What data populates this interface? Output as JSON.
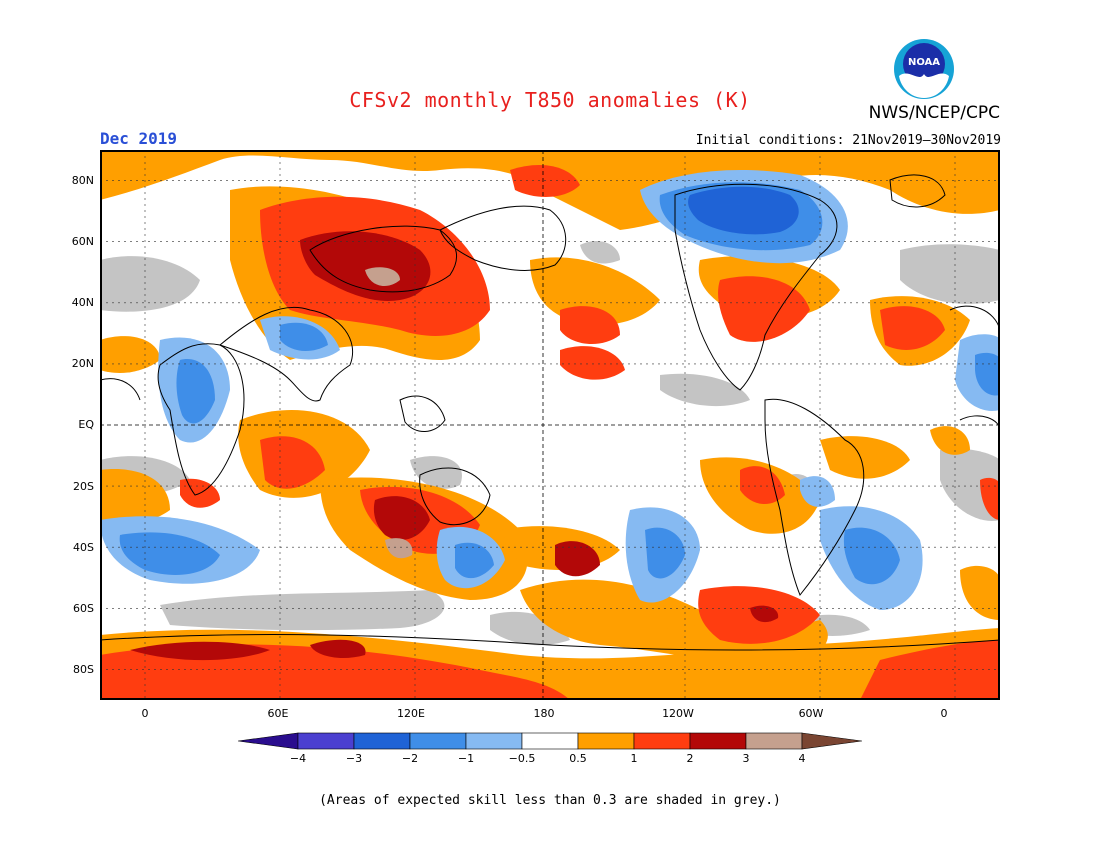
{
  "header": {
    "title": "CFSv2 monthly T850 anomalies (K)",
    "period": "Dec 2019",
    "initial_conditions": "Initial conditions: 21Nov2019–30Nov2019",
    "agency": "NWS/NCEP/CPC",
    "logo_text": "NOAA",
    "logo_icon": "noaa-logo-icon"
  },
  "axes": {
    "lat_labels": [
      "80N",
      "60N",
      "40N",
      "20N",
      "EQ",
      "20S",
      "40S",
      "60S",
      "80S"
    ],
    "lon_labels": [
      "0",
      "60E",
      "120E",
      "180",
      "120W",
      "60W",
      "0"
    ]
  },
  "legend": {
    "labels": [
      "−4",
      "−3",
      "−2",
      "−1",
      "−0.5",
      "0.5",
      "1",
      "2",
      "3",
      "4"
    ],
    "colors": [
      "#2a0d8e",
      "#4b3fd0",
      "#1f63d6",
      "#3f8ee8",
      "#86baf2",
      "#ffffff",
      "#ff9f00",
      "#ff3d10",
      "#b30808",
      "#c5a08e",
      "#7a4532"
    ],
    "skill_color": "#c4c4c4"
  },
  "footnote": "(Areas of expected skill less than 0.3 are shaded in grey.)"
}
